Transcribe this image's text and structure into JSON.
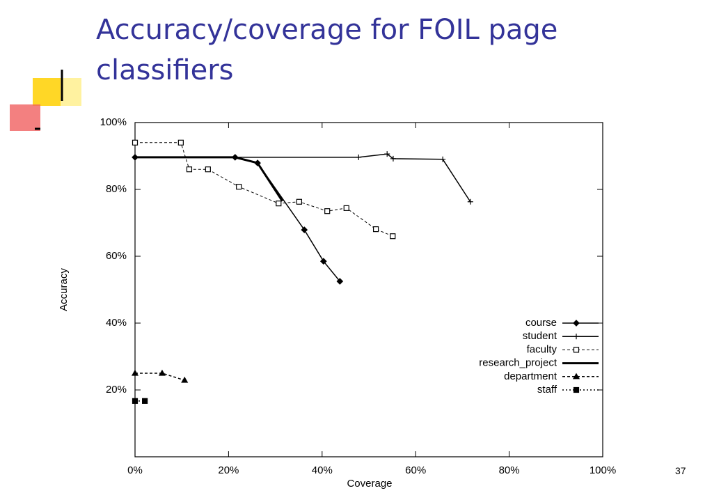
{
  "slide": {
    "title": "Accuracy/coverage for FOIL page classifiers",
    "page_number": "37"
  },
  "chart_data": {
    "type": "line",
    "xlabel": "Coverage",
    "ylabel": "Accuracy",
    "xlim": [
      0,
      100
    ],
    "ylim": [
      0,
      100
    ],
    "xticks": [
      {
        "value": 0,
        "label": "0%"
      },
      {
        "value": 20,
        "label": "20%"
      },
      {
        "value": 40,
        "label": "40%"
      },
      {
        "value": 60,
        "label": "60%"
      },
      {
        "value": 80,
        "label": "80%"
      },
      {
        "value": 100,
        "label": "100%"
      }
    ],
    "yticks": [
      {
        "value": 20,
        "label": "20%"
      },
      {
        "value": 40,
        "label": "40%"
      },
      {
        "value": 60,
        "label": "60%"
      },
      {
        "value": 80,
        "label": "80%"
      },
      {
        "value": 100,
        "label": "100%"
      }
    ],
    "legend": "lower right",
    "series": [
      {
        "name": "course",
        "color": "#000000",
        "marker": "diamond",
        "dash": "none",
        "width": 1.5,
        "x": [
          0,
          21.4,
          26.2,
          36.2,
          40.3,
          43.8
        ],
        "values": [
          89.6,
          89.6,
          87.9,
          67.9,
          58.5,
          52.5
        ]
      },
      {
        "name": "student",
        "color": "#000000",
        "marker": "plus",
        "dash": "none",
        "width": 1.5,
        "x": [
          0,
          47.8,
          53.9,
          55.2,
          65.8,
          71.7
        ],
        "values": [
          89.6,
          89.6,
          90.6,
          89.2,
          89,
          76.3
        ]
      },
      {
        "name": "faculty",
        "color": "#000000",
        "marker": "open-square",
        "dash": "4,3",
        "width": 1,
        "x": [
          0,
          9.8,
          11.6,
          15.6,
          22.2,
          30.7,
          35.1,
          41.1,
          45.2,
          51.5,
          55.1
        ],
        "values": [
          94,
          94,
          86,
          86,
          80.8,
          75.8,
          76.3,
          73.5,
          74.4,
          68.1,
          66
        ]
      },
      {
        "name": "research_project",
        "color": "#000000",
        "marker": "none",
        "dash": "none",
        "width": 3,
        "x": [
          0,
          21.4,
          26.2,
          31.5
        ],
        "values": [
          89.6,
          89.6,
          87.9,
          76.5
        ]
      },
      {
        "name": "department",
        "color": "#000000",
        "marker": "triangle",
        "dash": "4,3",
        "width": 1.5,
        "x": [
          0,
          5.8,
          10.6
        ],
        "values": [
          25,
          25,
          22.9
        ]
      },
      {
        "name": "staff",
        "color": "#000000",
        "marker": "filled-square",
        "dash": "2,3",
        "width": 1.5,
        "x": [
          0,
          2.1
        ],
        "values": [
          16.7,
          16.7
        ]
      }
    ]
  }
}
